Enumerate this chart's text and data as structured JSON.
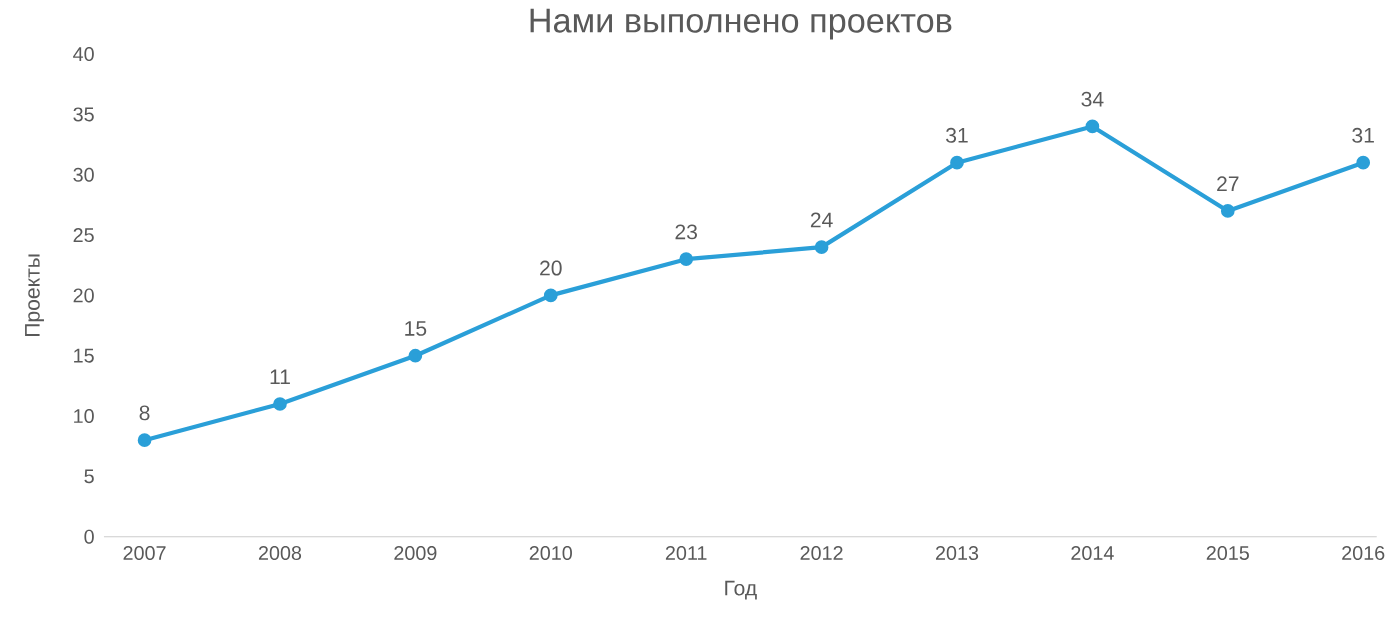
{
  "chart_data": {
    "type": "line",
    "title": "Нами выполнено проектов",
    "xlabel": "Год",
    "ylabel": "Проекты",
    "categories": [
      "2007",
      "2008",
      "2009",
      "2010",
      "2011",
      "2012",
      "2013",
      "2014",
      "2015",
      "2016"
    ],
    "series": [
      {
        "color": "#2a9fd8",
        "values": [
          8,
          11,
          15,
          20,
          23,
          24,
          31,
          34,
          27,
          31
        ]
      }
    ],
    "ylim": [
      0,
      40
    ],
    "yticks": [
      0,
      5,
      10,
      15,
      20,
      25,
      30,
      35,
      40
    ],
    "data_labels": true,
    "marker": "circle",
    "line_style": "solid",
    "grid": false
  }
}
